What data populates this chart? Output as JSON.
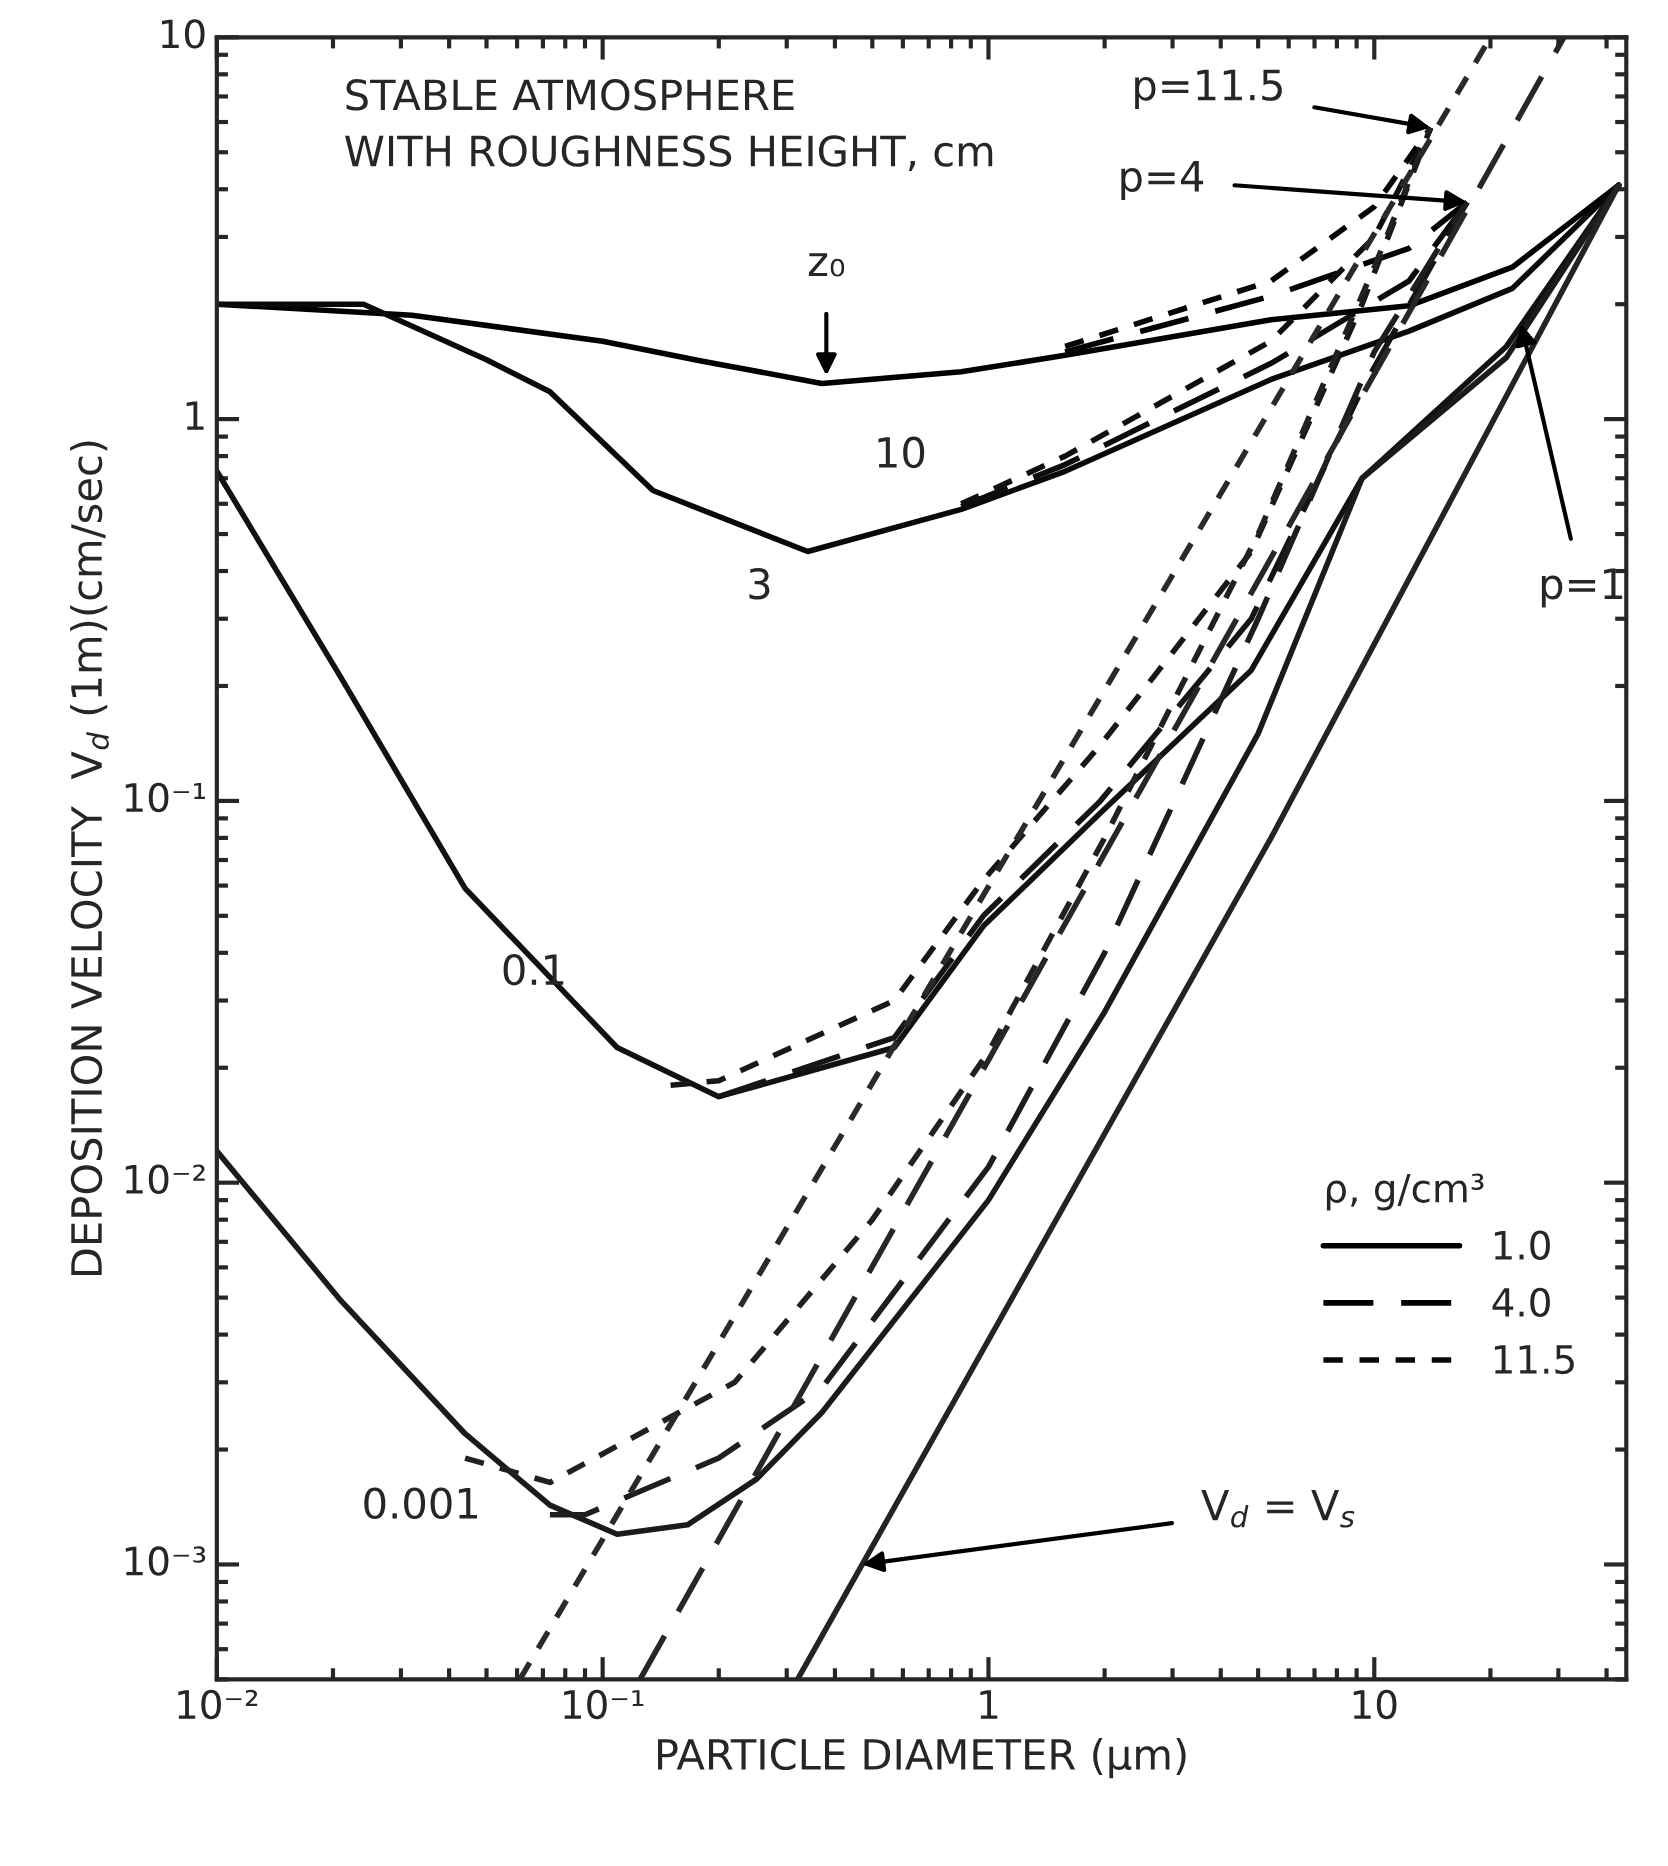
{
  "chart_data": {
    "type": "line",
    "title": "STABLE ATMOSPHERE\nWITH ROUGHNESS HEIGHT, cm",
    "xlabel": "PARTICLE DIAMETER (μm)",
    "ylabel": "DEPOSITION VELOCITY  V$_{d}$ (1m)(cm/sec)",
    "legend_title": "ρ, g/cm³",
    "log": "xy",
    "xlim": [
      0.01,
      45
    ],
    "ylim": [
      0.0005,
      10
    ],
    "xticks": [
      {
        "value": 0.01,
        "label": "10⁻²"
      },
      {
        "value": 0.1,
        "label": "10⁻¹"
      },
      1,
      10
    ],
    "yticks": [
      {
        "value": 0.001,
        "label": "10⁻³"
      },
      {
        "value": 0.01,
        "label": "10⁻²"
      },
      {
        "value": 0.1,
        "label": "10⁻¹"
      },
      1,
      10
    ],
    "grid": false,
    "legend": "bottom right",
    "series": [
      {
        "name": "1.0",
        "color": "#000000",
        "line_style": "solid",
        "x": [
          0.01,
          0.032,
          0.1,
          0.18,
          0.37,
          0.85,
          1.58,
          5.4,
          12.3,
          22.8,
          43
        ],
        "values": [
          2.0,
          1.87,
          1.6,
          1.42,
          1.24,
          1.33,
          1.47,
          1.82,
          1.98,
          2.5,
          4.1
        ]
      },
      {
        "name": "4.0",
        "color": "#030303",
        "line_style": "dashed",
        "x": [
          1.58,
          5.4,
          12.3,
          17.4
        ],
        "values": [
          1.5,
          2.1,
          2.8,
          3.7
        ]
      },
      {
        "name": "11.5",
        "color": "#060606",
        "line_style": "dotted",
        "x": [
          1.58,
          5.4,
          10,
          14
        ],
        "values": [
          1.55,
          2.3,
          3.6,
          5.8
        ]
      },
      {
        "color": "#090909",
        "line_style": "solid",
        "x": [
          0.01,
          0.024,
          0.05,
          0.073,
          0.135,
          0.34,
          0.85,
          1.58,
          5.4,
          12.3,
          22.8,
          43
        ],
        "values": [
          2.0,
          2.0,
          1.43,
          1.18,
          0.65,
          0.45,
          0.58,
          0.73,
          1.27,
          1.7,
          2.2,
          4.1
        ]
      },
      {
        "color": "#0c0c0c",
        "line_style": "dashed",
        "x": [
          0.85,
          1.58,
          5.4,
          12.3,
          17.4
        ],
        "values": [
          0.59,
          0.76,
          1.4,
          2.3,
          3.7
        ]
      },
      {
        "color": "#0f0f0f",
        "line_style": "dotted",
        "x": [
          0.85,
          1.58,
          5.4,
          10,
          14
        ],
        "values": [
          0.6,
          0.8,
          1.6,
          3.0,
          5.8
        ]
      },
      {
        "color": "#121212",
        "line_style": "solid",
        "x": [
          0.01,
          0.021,
          0.044,
          0.109,
          0.2,
          0.57,
          0.97,
          1.95,
          4.8,
          9.3,
          22,
          43
        ],
        "values": [
          0.73,
          0.21,
          0.059,
          0.0226,
          0.0168,
          0.0226,
          0.047,
          0.093,
          0.22,
          0.7,
          1.55,
          4.1
        ]
      },
      {
        "color": "#151515",
        "line_style": "dashed",
        "x": [
          0.2,
          0.57,
          0.97,
          1.95,
          4.8,
          9.3,
          17.4
        ],
        "values": [
          0.0168,
          0.024,
          0.05,
          0.1,
          0.3,
          1.2,
          3.7
        ]
      },
      {
        "color": "#181818",
        "line_style": "dotted",
        "x": [
          0.15,
          0.2,
          0.57,
          0.97,
          1.95,
          4.8,
          9.3,
          14
        ],
        "values": [
          0.018,
          0.0185,
          0.03,
          0.062,
          0.14,
          0.45,
          2.0,
          5.8
        ]
      },
      {
        "color": "#1b1b1b",
        "line_style": "solid",
        "x": [
          0.01,
          0.021,
          0.044,
          0.073,
          0.109,
          0.166,
          0.25,
          0.37,
          1,
          2,
          5,
          9.3,
          22,
          43
        ],
        "values": [
          0.0121,
          0.0049,
          0.0022,
          0.00143,
          0.0012,
          0.00127,
          0.00167,
          0.0025,
          0.009,
          0.028,
          0.15,
          0.7,
          1.45,
          4.1
        ]
      },
      {
        "color": "#1e1e1e",
        "line_style": "dashed",
        "x": [
          0.073,
          0.09,
          0.2,
          0.37,
          1,
          2,
          5,
          10,
          17.4
        ],
        "values": [
          0.00135,
          0.00135,
          0.0019,
          0.0029,
          0.011,
          0.04,
          0.3,
          1.5,
          3.7
        ]
      },
      {
        "color": "#212121",
        "line_style": "dotted",
        "x": [
          0.044,
          0.073,
          0.22,
          0.5,
          1,
          2,
          5,
          10,
          14
        ],
        "values": [
          0.0019,
          0.00164,
          0.003,
          0.008,
          0.022,
          0.08,
          0.5,
          2.5,
          5.8
        ]
      },
      {
        "color": "#242424",
        "line_style": "solid",
        "x": [
          0.32,
          5.4,
          43
        ],
        "values": [
          0.0005,
          0.08,
          4.1
        ]
      },
      {
        "color": "#272727",
        "line_style": "dashed",
        "x": [
          0.125,
          31
        ],
        "values": [
          0.0005,
          10
        ]
      },
      {
        "color": "#2a2a2a",
        "line_style": "dotted",
        "x": [
          0.061,
          20
        ],
        "values": [
          0.0005,
          10
        ]
      }
    ],
    "annotations": [
      {
        "text": "z₀",
        "x": 0.38,
        "y": 1.3
      },
      "10",
      "3",
      "0.1",
      "0.001",
      {
        "text": "p=11.5",
        "x": 14,
        "y": 5.8
      },
      {
        "text": "p=4",
        "x": 17.4,
        "y": 3.7
      },
      {
        "text": "p=1",
        "x": 24,
        "y": 1.78
      },
      {
        "text": "V$_{d}$ = V$_{s}$",
        "x": 0.47,
        "y": 0.001
      }
    ]
  }
}
